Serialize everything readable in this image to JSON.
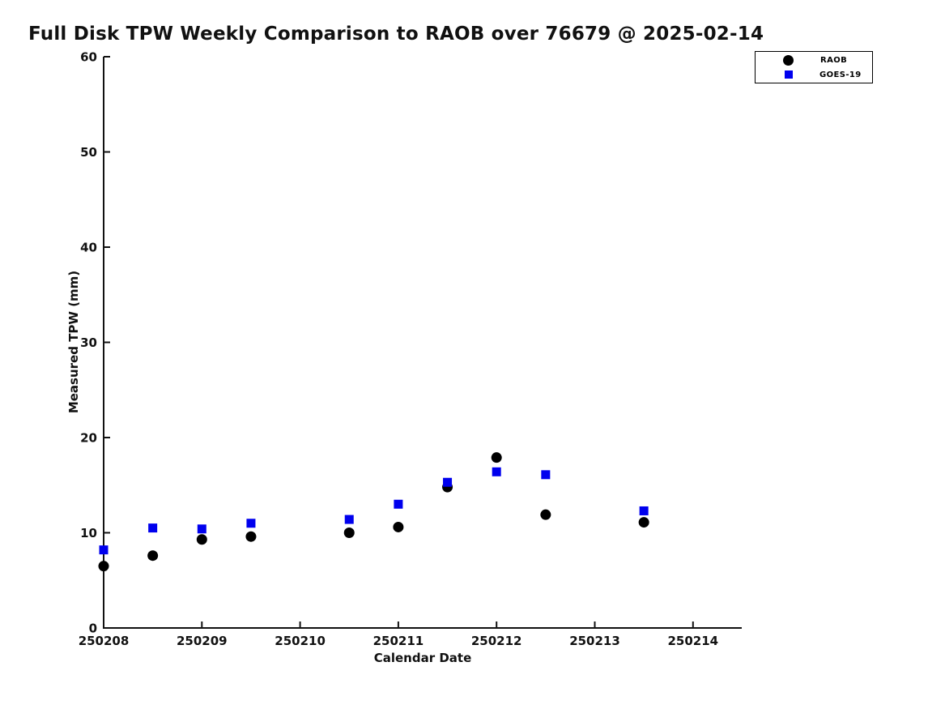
{
  "figure": {
    "background": "#ffffff",
    "text_color": "#111111",
    "axis_color": "#111111"
  },
  "legend": {
    "items": [
      {
        "label": "RAOB",
        "marker": "circle-icon",
        "color": "#000000"
      },
      {
        "label": "GOES-19",
        "marker": "square-icon",
        "color": "#0000EE"
      }
    ]
  },
  "chart_data": {
    "type": "scatter",
    "title": "Full Disk TPW Weekly Comparison to RAOB over 76679 @ 2025-02-14",
    "xlabel": "Calendar Date",
    "ylabel": "Measured TPW (mm)",
    "x_tick_labels": [
      "250208",
      "250209",
      "250210",
      "250211",
      "250212",
      "250213",
      "250214"
    ],
    "y_ticks": [
      0,
      10,
      20,
      30,
      40,
      50,
      60
    ],
    "ylim": [
      0,
      60
    ],
    "xlim_days_from_250208": [
      0,
      6.5
    ],
    "grid": false,
    "legend_position": "top-right, outside axes",
    "series": [
      {
        "name": "RAOB",
        "marker": "circle",
        "color": "#000000",
        "x_days_from_250208": [
          0,
          0.5,
          1,
          1.5,
          2.5,
          3,
          3.5,
          4,
          4.5,
          5.5
        ],
        "y": [
          6.5,
          7.6,
          9.3,
          9.6,
          10.0,
          10.6,
          14.8,
          17.9,
          11.9,
          11.1
        ]
      },
      {
        "name": "GOES-19",
        "marker": "square",
        "color": "#0000EE",
        "x_days_from_250208": [
          0,
          0.5,
          1,
          1.5,
          2.5,
          3,
          3.5,
          4,
          4.5,
          5.5
        ],
        "y": [
          8.2,
          10.5,
          10.4,
          11.0,
          11.4,
          13.0,
          15.3,
          16.4,
          16.1,
          12.3
        ]
      }
    ]
  }
}
